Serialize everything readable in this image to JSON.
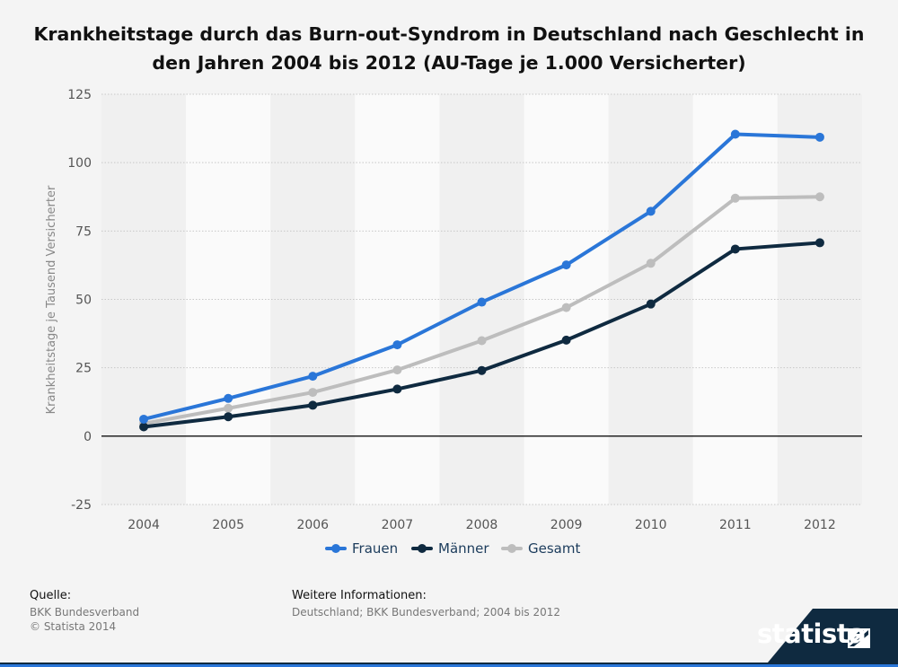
{
  "title_line1": "Krankheitstage durch das Burn-out-Syndrom in Deutschland nach Geschlecht in",
  "title_line2": "den Jahren 2004 bis 2012 (AU-Tage je 1.000 Versicherter)",
  "source": {
    "label": "Quelle:",
    "line1": "BKK Bundesverband",
    "line2": "© Statista 2014"
  },
  "more_info": {
    "label": "Weitere Informationen:",
    "text": "Deutschland; BKK Bundesverband; 2004 bis 2012"
  },
  "brand": "statista",
  "brand_icon": "statista-logo-icon",
  "colors": {
    "frauen": "#2a76d8",
    "maenner": "#0f2a40",
    "gesamt": "#bdbdbd",
    "footer_band": "#0f2a40"
  },
  "chart_data": {
    "type": "line",
    "title": "Krankheitstage durch das Burn-out-Syndrom in Deutschland nach Geschlecht in den Jahren 2004 bis 2012 (AU-Tage je 1.000 Versicherter)",
    "xlabel": "",
    "ylabel": "Krankheitstage je Tausend Versicherter",
    "categories": [
      "2004",
      "2005",
      "2006",
      "2007",
      "2008",
      "2009",
      "2010",
      "2011",
      "2012"
    ],
    "yticks": [
      "125",
      "100",
      "75",
      "50",
      "25",
      "0",
      "-25"
    ],
    "ylim": [
      -25,
      125
    ],
    "grid": true,
    "legend_position": "bottom",
    "series": [
      {
        "name": "Frauen",
        "values": [
          6.2,
          13.8,
          21.9,
          33.4,
          49.0,
          62.6,
          82.2,
          110.4,
          109.3
        ]
      },
      {
        "name": "Männer",
        "values": [
          3.4,
          7.1,
          11.3,
          17.2,
          24.0,
          35.1,
          48.3,
          68.4,
          70.7
        ]
      },
      {
        "name": "Gesamt",
        "values": [
          4.6,
          10.2,
          16.0,
          24.2,
          34.9,
          47.0,
          63.2,
          87.0,
          87.5
        ]
      }
    ]
  }
}
